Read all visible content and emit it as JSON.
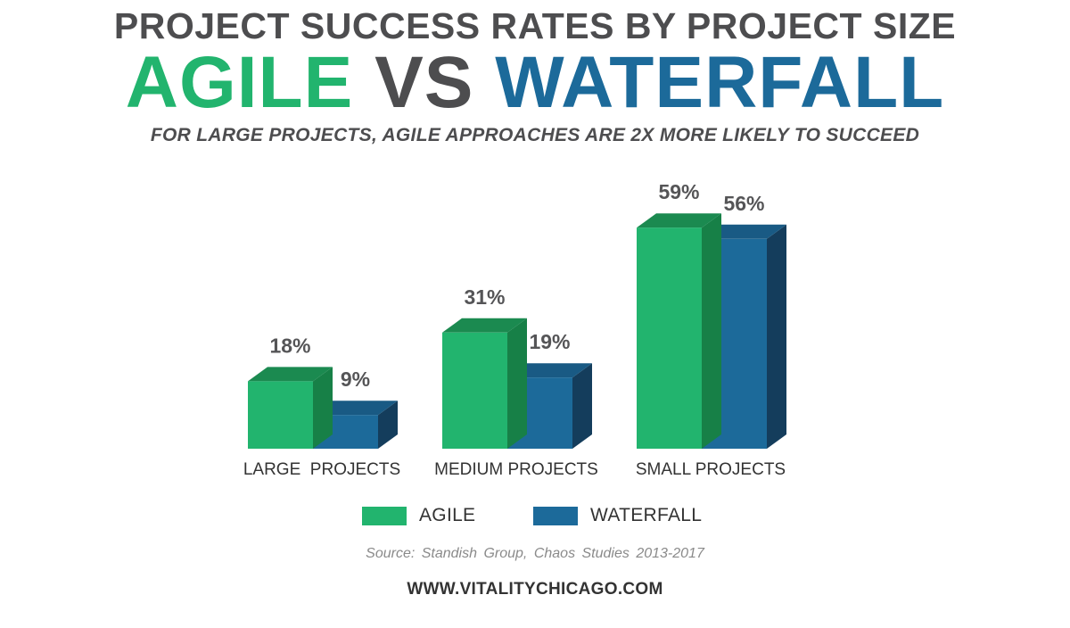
{
  "colors": {
    "agile": "#22b46e",
    "agile_top": "#1b8a50",
    "agile_side": "#178047",
    "waterfall": "#1c6a9a",
    "waterfall_top": "#195a84",
    "waterfall_side": "#143d5c",
    "label": "#555557",
    "headline_gray": "#4d4d4f"
  },
  "header": {
    "line1": "PROJECT SUCCESS RATES BY PROJECT SIZE",
    "agile_word": "AGILE",
    "vs_word": "VS",
    "waterfall_word": "WATERFALL",
    "subtitle": "FOR LARGE PROJECTS, AGILE APPROACHES ARE 2X MORE LIKELY TO SUCCEED"
  },
  "chart_data": {
    "type": "bar",
    "categories": [
      "LARGE  PROJECTS",
      "MEDIUM PROJECTS",
      "SMALL PROJECTS"
    ],
    "series": [
      {
        "name": "AGILE",
        "values": [
          18,
          31,
          59
        ],
        "labels": [
          "18%",
          "31%",
          "59%"
        ]
      },
      {
        "name": "WATERFALL",
        "values": [
          9,
          19,
          56
        ],
        "labels": [
          "9%",
          "19%",
          "56%"
        ]
      }
    ],
    "unit": "%",
    "ylim": [
      0,
      100
    ],
    "grid": false,
    "legend_position": "bottom"
  },
  "legend": {
    "agile_label": "AGILE",
    "waterfall_label": "WATERFALL"
  },
  "footer": {
    "source": "Source: Standish Group, Chaos Studies 2013-2017",
    "url": "WWW.VITALITYCHICAGO.COM"
  }
}
